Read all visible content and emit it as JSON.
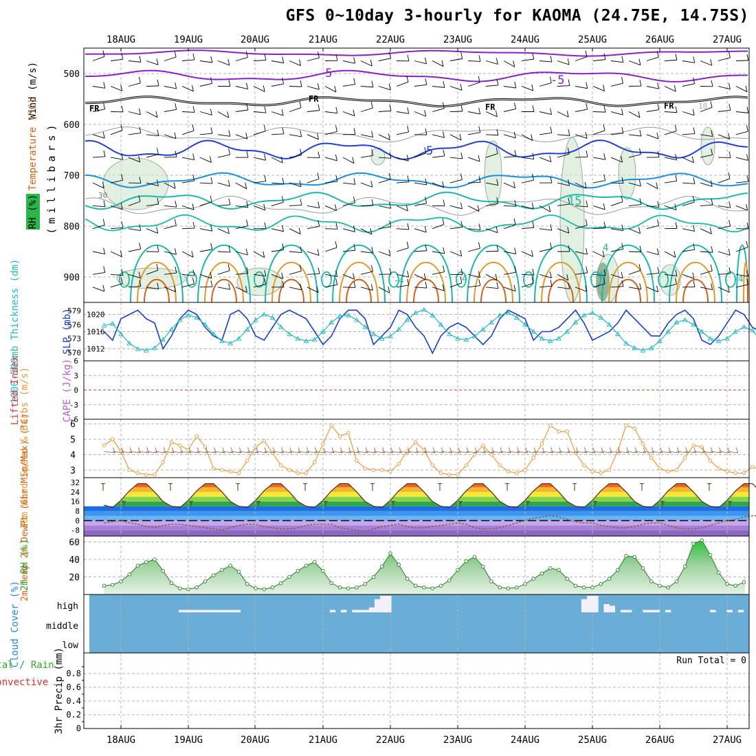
{
  "title": "GFS 0~10day 3-hourly for KAOMA (24.75E, 14.75S)",
  "colors": {
    "grid": "#b4b4b4",
    "purple": "#8a1fc4",
    "blue": "#1f3fd0",
    "midblue": "#1a8fe0",
    "teal": "#19b8a8",
    "orange": "#e09a2a",
    "darkorange": "#d66014",
    "rhgreen": "#4dbb4d",
    "cloud": "#6aaed8",
    "slp": "#1a3ccc",
    "thick": "#22b8c0",
    "windspeed": "#e89a3a",
    "barb": "#8a6a50",
    "li": "#e04040",
    "cape": "#b060d0"
  },
  "chart_data": [
    {
      "panel": "cross_section",
      "type": "contour",
      "dates": [
        "18AUG",
        "19AUG",
        "20AUG",
        "21AUG",
        "22AUG",
        "23AUG",
        "24AUG",
        "25AUG",
        "26AUG",
        "27AUG"
      ],
      "ylabel": "(millibars)",
      "yticks": [
        "500",
        "600",
        "700",
        "800",
        "900"
      ],
      "yrange_mb": [
        450,
        950
      ],
      "side_labels": [
        "Wind (m/s)",
        "Temperature (°C)",
        "RH (%)"
      ],
      "temperature_labels": [
        "-5",
        "-5",
        "5",
        "15",
        "4",
        "4",
        "4",
        "-4",
        "-4"
      ],
      "freezing_level_label": "FR",
      "rh_labels": [
        "30",
        "10"
      ]
    },
    {
      "panel": "thickness_slp",
      "type": "line",
      "left_label": "1000-500mb Thickness (dm)",
      "right_label": "SLP (mb)",
      "left_ticks": [
        "579",
        "576",
        "573",
        "570"
      ],
      "right_ticks": [
        "1020",
        "1016",
        "1012"
      ],
      "slp": [
        1016,
        1014,
        1019,
        1020,
        1021,
        1019,
        1018,
        1012,
        1015,
        1019,
        1021,
        1020,
        1017,
        1015,
        1014,
        1020,
        1021,
        1019,
        1015,
        1014,
        1017,
        1020,
        1021,
        1020,
        1019,
        1016,
        1013,
        1015,
        1019,
        1021,
        1021,
        1019,
        1013,
        1015,
        1017,
        1021,
        1020,
        1017,
        1015,
        1011,
        1015,
        1017,
        1018,
        1017,
        1015,
        1013,
        1015,
        1019,
        1021,
        1020,
        1019,
        1014,
        1016,
        1016,
        1017,
        1019,
        1021,
        1018,
        1014,
        1015,
        1016,
        1018,
        1021,
        1019,
        1017,
        1015,
        1015,
        1018,
        1020,
        1021,
        1019,
        1014,
        1013,
        1015,
        1018,
        1021,
        1020,
        1017,
        1016,
        1017
      ],
      "thickness": [
        575.8,
        576.2,
        574,
        572,
        570.8,
        570.5,
        571,
        572.8,
        575,
        577,
        578,
        577.5,
        576,
        574,
        572.5,
        572,
        573,
        575,
        577,
        578.2,
        577.5,
        575.5,
        574,
        573,
        572.5,
        572.8,
        574.5,
        576.5,
        577.8,
        578,
        577,
        575.5,
        574,
        573,
        573.5,
        575,
        577,
        578.5,
        579.2,
        578,
        576,
        574,
        573,
        572.8,
        573.5,
        575,
        576.5,
        578,
        578.5,
        577.5,
        576,
        574.5,
        573,
        572.5,
        573,
        574.5,
        576.5,
        578,
        578.5,
        577.5,
        576,
        574,
        572,
        571,
        570.5,
        571,
        572.5,
        574.5,
        576.5,
        577,
        576,
        574.5,
        573,
        572.5,
        573,
        574.5,
        575.5,
        574.8,
        572.5,
        573
      ]
    },
    {
      "panel": "lifted_index_cape",
      "type": "line",
      "left_label": "Lifted Index",
      "right_label": "CAPE (J/kg)",
      "yticks": [
        "6",
        "3",
        "0",
        "-3",
        "-6"
      ],
      "lifted_index_zero": 0
    },
    {
      "panel": "wind10m",
      "type": "line",
      "label": "10m Wind Speed & Barbs (m/s)",
      "yticks": [
        "6",
        "5",
        "4",
        "3"
      ],
      "yrange": [
        2.5,
        6.3
      ],
      "values": [
        4.6,
        5,
        4.2,
        3,
        2.8,
        2.7,
        2.7,
        3.5,
        4.8,
        4.6,
        4.3,
        5.2,
        4.5,
        3.1,
        3.0,
        2.9,
        2.8,
        3.6,
        4.5,
        4.9,
        4.1,
        3.3,
        3.0,
        2.8,
        2.8,
        3.5,
        4.7,
        5.9,
        5.2,
        5.4,
        3.6,
        3.1,
        3.0,
        3.0,
        2.9,
        3.4,
        4.2,
        4.8,
        4.3,
        3.3,
        2.8,
        2.7,
        2.7,
        3.3,
        4.0,
        4.6,
        4.0,
        3.3,
        2.9,
        2.8,
        3.0,
        3.8,
        4.7,
        5.9,
        5.5,
        5.5,
        4.1,
        3.3,
        2.9,
        2.8,
        3.0,
        4.2,
        5.9,
        5.7,
        4.7,
        3.8,
        3.1,
        2.9,
        3.0,
        3.8,
        4.6,
        4.5,
        3.6,
        3.1,
        2.9,
        2.8,
        2.8,
        3.2,
        3.0,
        2.8,
        2.8,
        2.9,
        3.0
      ]
    },
    {
      "panel": "temp2m",
      "type": "area",
      "label": "2m Temp 2m DewPt (6hr Min/Max) (°C)",
      "yticks": [
        "32",
        "24",
        "16",
        "8",
        "0",
        "-8"
      ],
      "yrange": [
        -13,
        36
      ],
      "temp": [
        13,
        11,
        17,
        25,
        31,
        31,
        24,
        16,
        12,
        11,
        17,
        25,
        31,
        31,
        24,
        16,
        12,
        11,
        17,
        25,
        31,
        31,
        24,
        16,
        12,
        11,
        17,
        25,
        31,
        31,
        24,
        16,
        12,
        11,
        17,
        25,
        31,
        31,
        24,
        16,
        12,
        11,
        17,
        25,
        31,
        31,
        24,
        16,
        12,
        11,
        17,
        25,
        31,
        31,
        24,
        16,
        12,
        11,
        17,
        25,
        31,
        31,
        24,
        16,
        12,
        11,
        17,
        25,
        31,
        31,
        24,
        16,
        12,
        11,
        17,
        25,
        31,
        31,
        24,
        16
      ],
      "dewpoint": [
        -2,
        -1,
        0,
        -2,
        -3,
        -5,
        -6,
        -4,
        -3,
        -3,
        -4,
        -5,
        -6,
        -7,
        -8,
        -6,
        -4,
        -3,
        -3,
        -5,
        -6,
        -7,
        -7,
        -6,
        -4,
        -3,
        -3,
        -3,
        -6,
        -7,
        -8,
        -9,
        -7,
        -5,
        -4,
        -3,
        -5,
        -6,
        -6,
        -5,
        -4,
        -3,
        -2,
        -3,
        -6,
        -7,
        -7,
        -6,
        -4,
        -2,
        0,
        2,
        3,
        4,
        3,
        1,
        -1,
        -2,
        -2,
        -4,
        -5,
        -6,
        -6,
        -5,
        -3,
        -2,
        -2,
        -4,
        -6,
        -7,
        -7,
        -6,
        -4,
        -2,
        0,
        1,
        3,
        4,
        4,
        3
      ]
    },
    {
      "panel": "rh2m",
      "type": "area",
      "label": "2m RH (%)",
      "yticks": [
        "60",
        "40",
        "20"
      ],
      "yrange": [
        0,
        62
      ],
      "values": [
        10,
        11,
        15,
        23,
        33,
        37,
        40,
        27,
        13,
        7,
        6,
        8,
        15,
        22,
        28,
        33,
        26,
        12,
        7,
        6,
        8,
        13,
        20,
        27,
        33,
        37,
        27,
        13,
        8,
        7,
        8,
        12,
        20,
        32,
        47,
        34,
        18,
        10,
        8,
        7,
        10,
        16,
        28,
        38,
        43,
        32,
        15,
        8,
        7,
        8,
        12,
        18,
        24,
        30,
        28,
        18,
        10,
        8,
        8,
        12,
        18,
        28,
        44,
        43,
        30,
        15,
        10,
        8,
        15,
        32,
        58,
        62,
        45,
        25,
        12,
        10,
        14,
        24,
        34,
        38,
        42,
        30,
        15,
        8,
        7,
        10,
        15,
        25,
        40,
        45,
        35
      ]
    },
    {
      "panel": "cloud_cover",
      "type": "bar",
      "label": "Cloud Cover (%)",
      "levels": [
        "high",
        "middle",
        "low"
      ],
      "high": [
        0,
        0,
        0,
        0,
        0,
        0,
        0,
        0,
        0,
        0,
        0,
        0,
        0,
        0,
        0,
        0,
        15,
        15,
        15,
        15,
        15,
        15,
        15,
        15,
        15,
        15,
        15,
        0,
        0,
        0,
        0,
        0,
        0,
        0,
        0,
        0,
        0,
        0,
        0,
        0,
        0,
        0,
        0,
        15,
        0,
        15,
        0,
        15,
        15,
        15,
        30,
        80,
        100,
        100,
        0,
        0,
        0,
        0,
        0,
        0,
        0,
        0,
        0,
        0,
        0,
        0,
        0,
        0,
        0,
        0,
        0,
        0,
        0,
        0,
        0,
        0,
        0,
        0,
        0,
        0,
        0,
        0,
        0,
        0,
        0,
        0,
        0,
        0,
        80,
        100,
        100,
        0,
        50,
        40,
        0,
        15,
        15,
        0,
        0,
        15,
        15,
        15,
        0,
        15,
        0,
        0,
        0,
        0,
        0,
        0,
        0,
        15,
        0,
        0,
        15,
        0,
        15,
        0
      ]
    },
    {
      "panel": "precip",
      "type": "bar",
      "label": "3hr Precip (mm)",
      "left_labels": [
        "Total / Rain",
        "Convective"
      ],
      "yticks": [
        "0.8",
        "0.6",
        "0.4",
        "0.2",
        "0"
      ],
      "ylim": [
        0,
        1
      ],
      "run_total_label": "Run Total = 0",
      "values": []
    }
  ]
}
